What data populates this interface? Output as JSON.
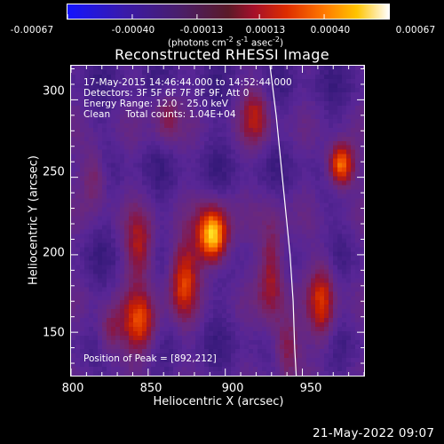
{
  "colorbar": {
    "tick_labels": [
      "-0.00067",
      "-0.00040",
      "-0.00013",
      "0.00013",
      "0.00040",
      "0.00067"
    ],
    "units_text": "(photons cm",
    "units_exp1": "-2",
    "units_mid1": " s",
    "units_exp2": "-1",
    "units_mid2": " asec",
    "units_exp3": "-2",
    "units_end": ")",
    "range": [
      -0.00067,
      0.00067
    ]
  },
  "chart_data": {
    "type": "heatmap",
    "title": "Reconstructed RHESSI Image",
    "xlabel": "Heliocentric X (arcsec)",
    "ylabel": "Heliocentric Y (arcsec)",
    "xlim": [
      800,
      990
    ],
    "ylim": [
      122,
      322
    ],
    "x_ticks": [
      800,
      850,
      900,
      950
    ],
    "y_ticks": [
      150,
      200,
      250,
      300
    ],
    "x_tick_labels": [
      "800",
      "850",
      "900",
      "950"
    ],
    "y_tick_labels": [
      "150",
      "200",
      "250",
      "300"
    ],
    "peak": [
      892,
      212
    ],
    "sources": [
      {
        "x": 892,
        "y": 212,
        "amp": 1.0,
        "sx": 7,
        "sy": 13
      },
      {
        "x": 975,
        "y": 258,
        "amp": 0.85,
        "sx": 6,
        "sy": 10
      },
      {
        "x": 873,
        "y": 185,
        "amp": 0.55,
        "sx": 7,
        "sy": 18
      },
      {
        "x": 845,
        "y": 155,
        "amp": 0.6,
        "sx": 8,
        "sy": 14
      },
      {
        "x": 845,
        "y": 205,
        "amp": 0.45,
        "sx": 7,
        "sy": 16
      },
      {
        "x": 930,
        "y": 190,
        "amp": 0.5,
        "sx": 6,
        "sy": 25
      },
      {
        "x": 963,
        "y": 170,
        "amp": 0.55,
        "sx": 6,
        "sy": 20
      },
      {
        "x": 920,
        "y": 290,
        "amp": 0.4,
        "sx": 7,
        "sy": 14
      },
      {
        "x": 815,
        "y": 250,
        "amp": 0.35,
        "sx": 6,
        "sy": 14
      },
      {
        "x": 862,
        "y": 290,
        "amp": 0.35,
        "sx": 6,
        "sy": 12
      },
      {
        "x": 940,
        "y": 140,
        "amp": 0.4,
        "sx": 6,
        "sy": 14
      },
      {
        "x": 825,
        "y": 150,
        "amp": 0.35,
        "sx": 6,
        "sy": 12
      }
    ],
    "limb_curve": [
      [
        929,
        322
      ],
      [
        933,
        290
      ],
      [
        936,
        260
      ],
      [
        939,
        230
      ],
      [
        942,
        200
      ],
      [
        944,
        170
      ],
      [
        945,
        140
      ],
      [
        946,
        122
      ]
    ]
  },
  "annotation": {
    "line1": "17-May-2015 14:46:44.000 to 14:52:44.000",
    "line2": "Detectors: 3F 5F 6F 7F 8F 9F, Att 0",
    "line3": "Energy Range: 12.0 - 25.0 keV",
    "line4": "Clean     Total counts: 1.04E+04",
    "peak_text": "Position of Peak = [892,212]"
  },
  "footer": {
    "timestamp": "21-May-2022 09:07"
  }
}
